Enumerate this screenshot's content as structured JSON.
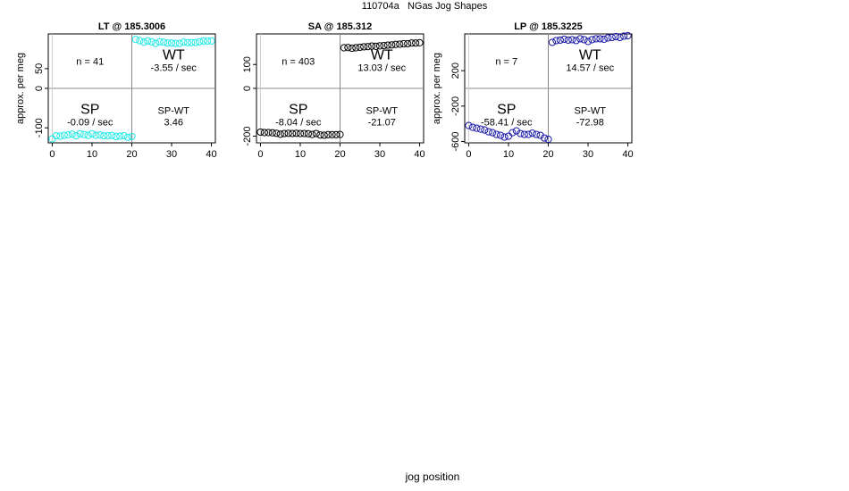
{
  "title": "110704a   NGas Jog Shapes",
  "xlabel": "jog position",
  "colors": {
    "LT": "#20e8e8",
    "SA": "#000000",
    "LP": "#1a1aa8"
  },
  "chart_data": [
    {
      "type": "scatter",
      "title": "LT @ 185.3006",
      "ylabel": "approx. per meg",
      "xlim": [
        -1,
        41
      ],
      "ylim": [
        -138,
        138
      ],
      "xticks": [
        0,
        10,
        20,
        30,
        40
      ],
      "yticks": [
        -100,
        0,
        50
      ],
      "series": [
        {
          "color": "#20e8e8",
          "x": [
            0,
            1,
            2,
            3,
            4,
            5,
            6,
            7,
            8,
            9,
            10,
            11,
            12,
            13,
            14,
            15,
            16,
            17,
            18,
            19,
            20,
            21,
            22,
            23,
            24,
            25,
            26,
            27,
            28,
            29,
            30,
            31,
            32,
            33,
            34,
            35,
            36,
            37,
            38,
            39,
            40
          ],
          "y": [
            -128,
            -120,
            -121,
            -119,
            -118,
            -116,
            -120,
            -115,
            -117,
            -119,
            -115,
            -119,
            -118,
            -120,
            -120,
            -119,
            -122,
            -121,
            -120,
            -124,
            -122,
            124,
            121,
            117,
            120,
            118,
            114,
            118,
            117,
            115,
            115,
            114,
            114,
            117,
            116,
            116,
            116,
            118,
            120,
            120,
            120
          ]
        }
      ],
      "quadrants": {
        "n": "n = 41",
        "WT": "WT",
        "WT_rate": "-3.55 / sec",
        "SP": "SP",
        "SP_rate": "-0.09 / sec",
        "SPWT": "SP-WT",
        "SPWT_val": "3.46"
      }
    },
    {
      "type": "scatter",
      "title": "SA @ 185.312",
      "ylabel": "",
      "xlim": [
        -1,
        41
      ],
      "ylim": [
        -228,
        228
      ],
      "xticks": [
        0,
        10,
        20,
        30,
        40
      ],
      "yticks": [
        -200,
        0,
        100
      ],
      "series": [
        {
          "color": "#000000",
          "x": [
            0,
            1,
            2,
            3,
            4,
            5,
            6,
            7,
            8,
            9,
            10,
            11,
            12,
            13,
            14,
            15,
            16,
            17,
            18,
            19,
            20,
            21,
            22,
            23,
            24,
            25,
            26,
            27,
            28,
            29,
            30,
            31,
            32,
            33,
            34,
            35,
            36,
            37,
            38,
            39,
            40
          ],
          "y": [
            -183,
            -185,
            -185,
            -186,
            -188,
            -192,
            -189,
            -188,
            -189,
            -188,
            -189,
            -189,
            -190,
            -193,
            -189,
            -195,
            -196,
            -194,
            -194,
            -194,
            -193,
            170,
            171,
            168,
            170,
            172,
            174,
            175,
            177,
            176,
            178,
            179,
            181,
            182,
            184,
            185,
            187,
            187,
            190,
            190,
            191
          ]
        }
      ],
      "quadrants": {
        "n": "n = 403",
        "WT": "WT",
        "WT_rate": "13.03 / sec",
        "SP": "SP",
        "SP_rate": "-8.04 / sec",
        "SPWT": "SP-WT",
        "SPWT_val": "-21.07"
      }
    },
    {
      "type": "scatter",
      "title": "LP @ 185.3225",
      "ylabel": "approx. per meg",
      "xlim": [
        -1,
        41
      ],
      "ylim": [
        -615,
        615
      ],
      "xticks": [
        0,
        10,
        20,
        30,
        40
      ],
      "yticks": [
        -600,
        -200,
        200
      ],
      "series": [
        {
          "color": "#1a1aa8",
          "x": [
            0,
            1,
            2,
            3,
            4,
            5,
            6,
            7,
            8,
            9,
            10,
            11,
            12,
            13,
            14,
            15,
            16,
            17,
            18,
            19,
            20,
            21,
            22,
            23,
            24,
            25,
            26,
            27,
            28,
            29,
            30,
            31,
            32,
            33,
            34,
            35,
            36,
            37,
            38,
            39,
            40
          ],
          "y": [
            -420,
            -440,
            -450,
            -460,
            -470,
            -490,
            -500,
            -520,
            -530,
            -550,
            -540,
            -500,
            -480,
            -510,
            -520,
            -520,
            -505,
            -520,
            -530,
            -560,
            -575,
            520,
            540,
            545,
            555,
            545,
            550,
            540,
            560,
            550,
            530,
            550,
            560,
            560,
            555,
            570,
            575,
            585,
            575,
            590,
            595
          ]
        }
      ],
      "quadrants": {
        "n": "n = 7",
        "WT": "WT",
        "WT_rate": "14.57 / sec",
        "SP": "SP",
        "SP_rate": "-58.41 / sec",
        "SPWT": "SP-WT",
        "SPWT_val": "-72.98"
      }
    }
  ]
}
